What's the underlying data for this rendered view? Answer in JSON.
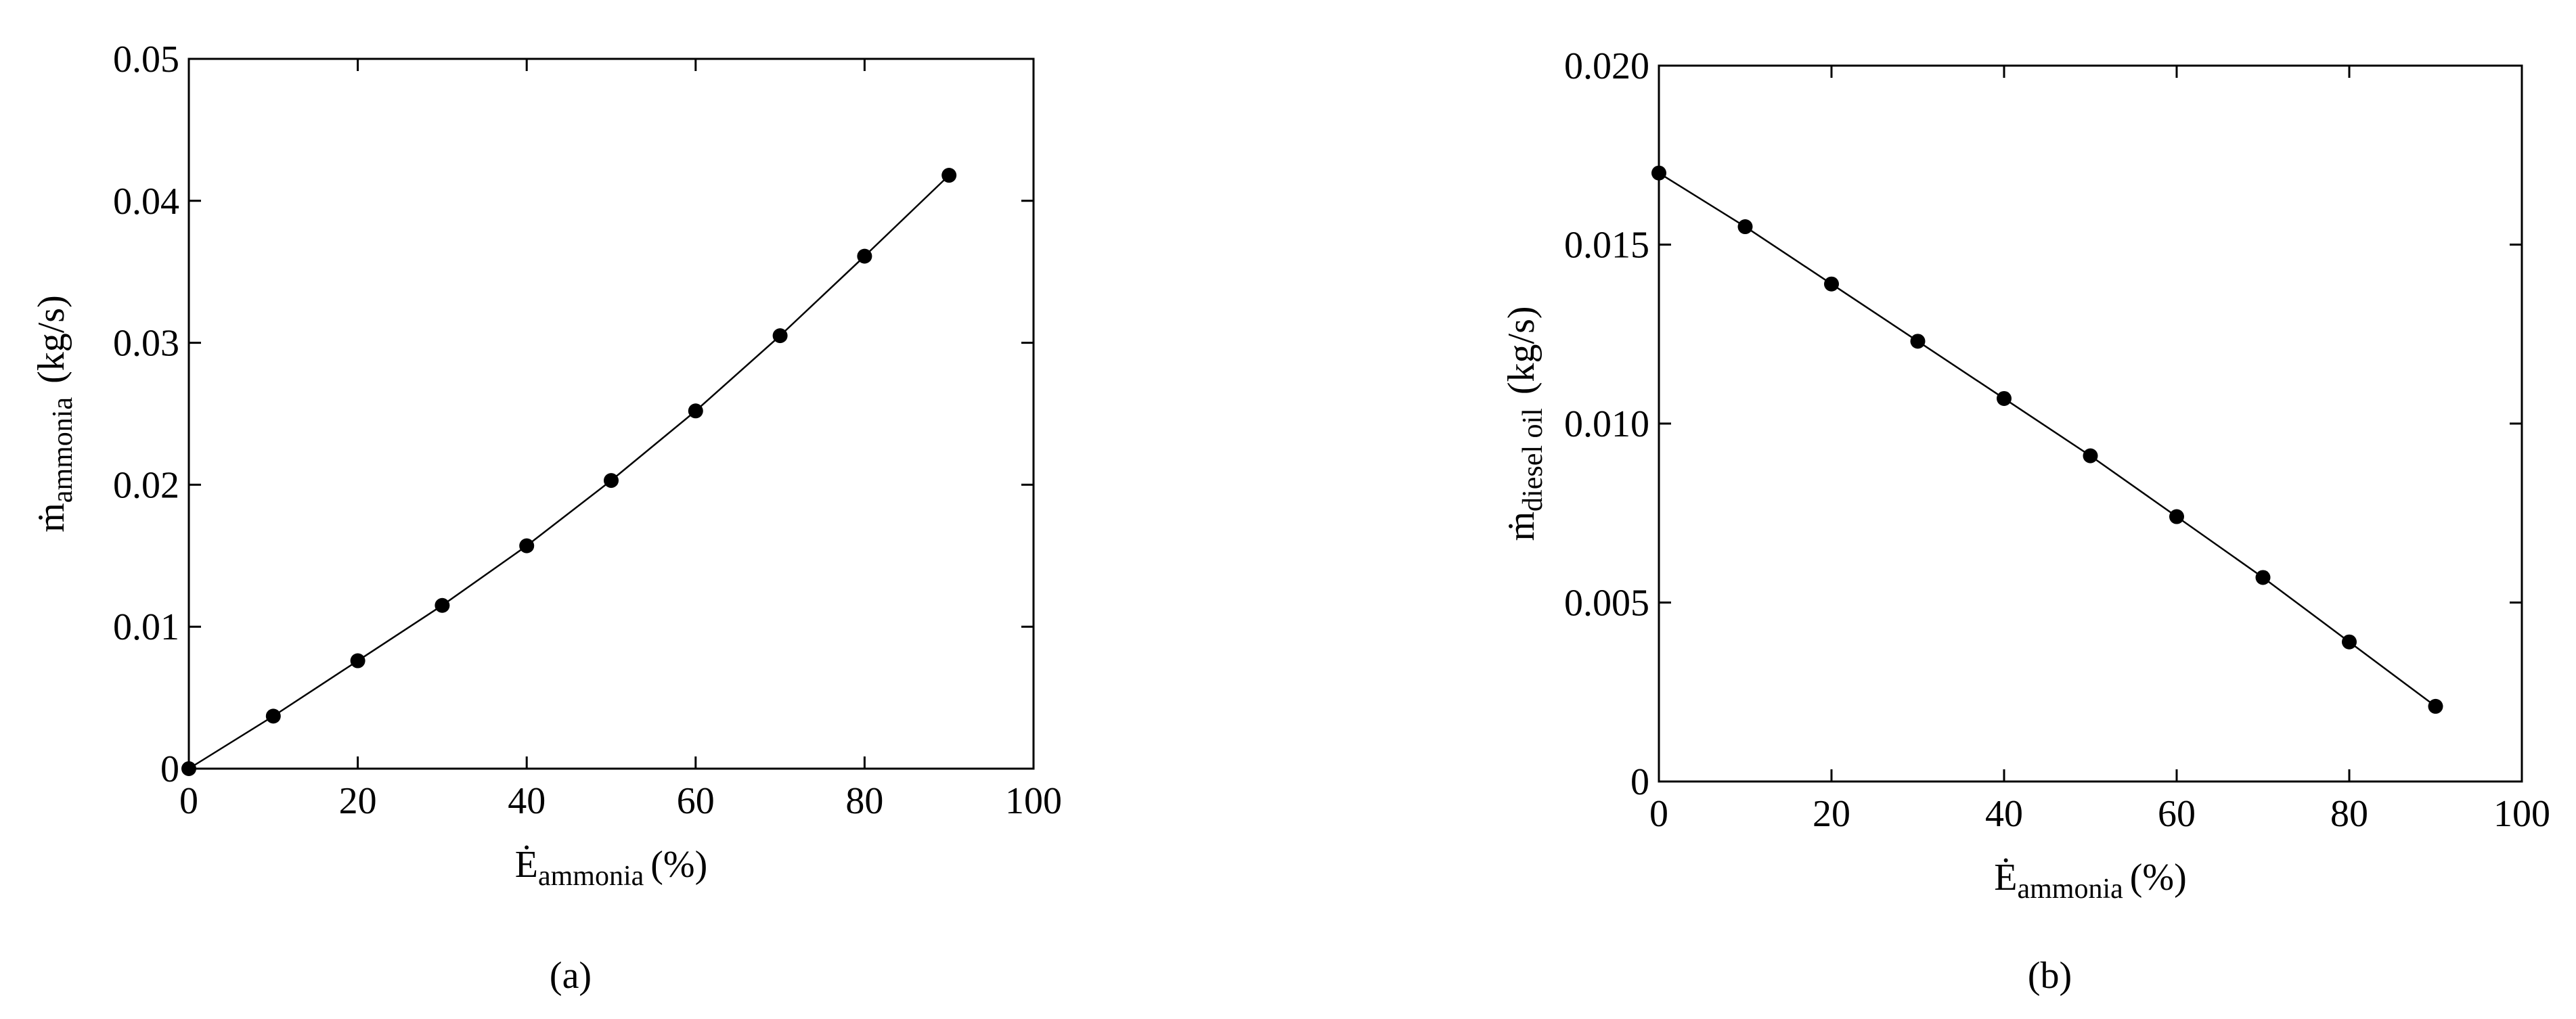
{
  "chart_data": [
    {
      "type": "line",
      "panel": "(a)",
      "xlabel": {
        "symbol": "Ė",
        "subscript": "ammonia",
        "unit": "(%)"
      },
      "ylabel": {
        "symbol": "ṁ",
        "subscript": "ammonia",
        "unit": "(kg/s)"
      },
      "x": [
        0,
        10,
        20,
        30,
        40,
        50,
        60,
        70,
        80,
        90
      ],
      "values": [
        0,
        0.0037,
        0.0076,
        0.0115,
        0.0157,
        0.0203,
        0.0252,
        0.0305,
        0.0361,
        0.0418
      ],
      "color": "#000000",
      "xlim": [
        0,
        100
      ],
      "xticks": [
        0,
        20,
        40,
        60,
        80,
        100
      ],
      "ylim": [
        0,
        0.05
      ],
      "yticks": [
        0,
        0.01,
        0.02,
        0.03,
        0.04,
        0.05
      ]
    },
    {
      "type": "line",
      "panel": "(b)",
      "xlabel": {
        "symbol": "Ė",
        "subscript": "ammonia",
        "unit": "(%)"
      },
      "ylabel": {
        "symbol": "ṁ",
        "subscript": "diesel oil",
        "unit": "(kg/s)"
      },
      "x": [
        0,
        10,
        20,
        30,
        40,
        50,
        60,
        70,
        80,
        90
      ],
      "values": [
        0.017,
        0.0155,
        0.0139,
        0.0123,
        0.0107,
        0.0091,
        0.0074,
        0.0057,
        0.0039,
        0.0021
      ],
      "color": "#000000",
      "xlim": [
        0,
        100
      ],
      "xticks": [
        0,
        20,
        40,
        60,
        80,
        100
      ],
      "ylim": [
        0,
        0.02
      ],
      "yticks": [
        0,
        0.005,
        {
          "value": 0.01,
          "label": "0.010"
        },
        0.015,
        {
          "value": 0.02,
          "label": "0.020"
        }
      ]
    }
  ]
}
